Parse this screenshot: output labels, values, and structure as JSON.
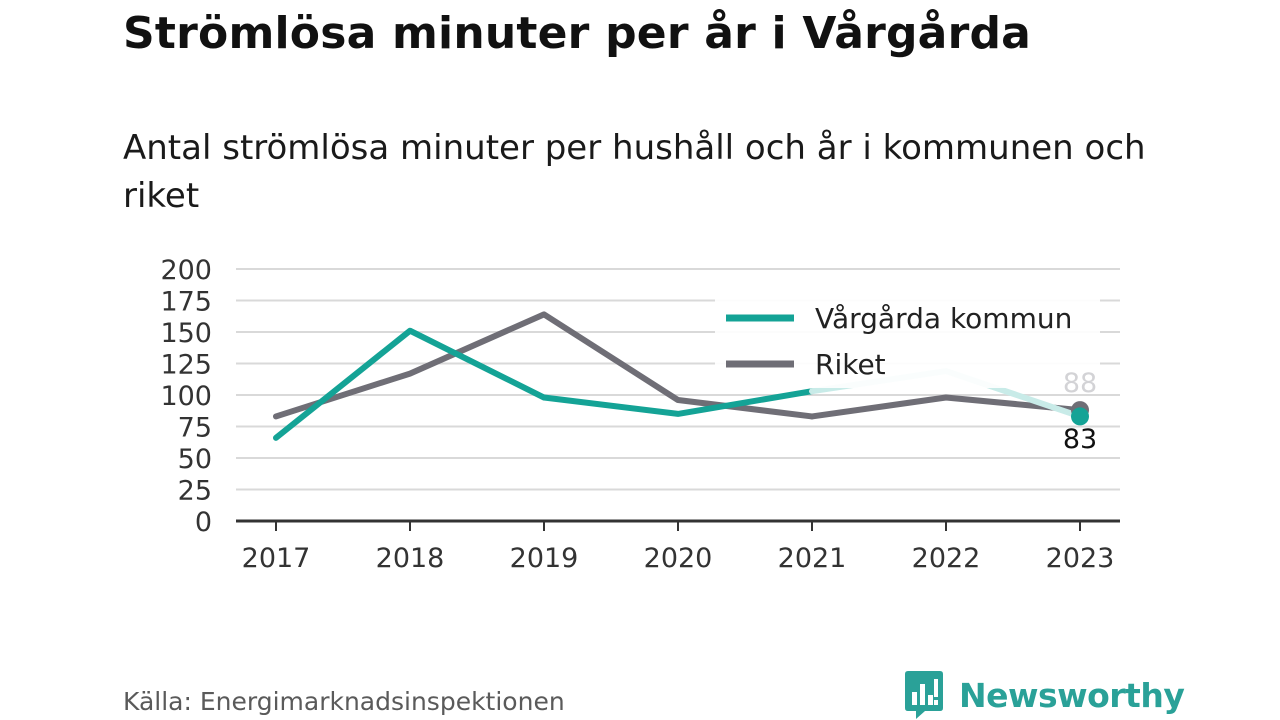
{
  "title": "Strömlösa minuter per år i Vårgårda",
  "subtitle": "Antal strömlösa minuter per hushåll och år i kommunen och riket",
  "source": "Källa: Energimarknadsinspektionen",
  "brand": "Newsworthy",
  "colors": {
    "primary": "#14a396",
    "primary_light": "#c8ebe8",
    "secondary": "#6f6e76",
    "secondary_light": "#d3d3d6",
    "grid": "#d9d9d9",
    "axis": "#333333"
  },
  "chart_data": {
    "type": "line",
    "x": [
      "2017",
      "2018",
      "2019",
      "2020",
      "2021",
      "2022",
      "2023"
    ],
    "ylim": [
      0,
      200
    ],
    "yticks": [
      0,
      25,
      50,
      75,
      100,
      125,
      150,
      175,
      200
    ],
    "grid": true,
    "legend_position": "top-right",
    "series": [
      {
        "name": "Vårgårda kommun",
        "values": [
          66,
          151,
          98,
          85,
          103,
          119,
          83
        ],
        "end_label": "83"
      },
      {
        "name": "Riket",
        "values": [
          83,
          117,
          164,
          96,
          83,
          98,
          88
        ],
        "end_label": "88"
      }
    ]
  }
}
